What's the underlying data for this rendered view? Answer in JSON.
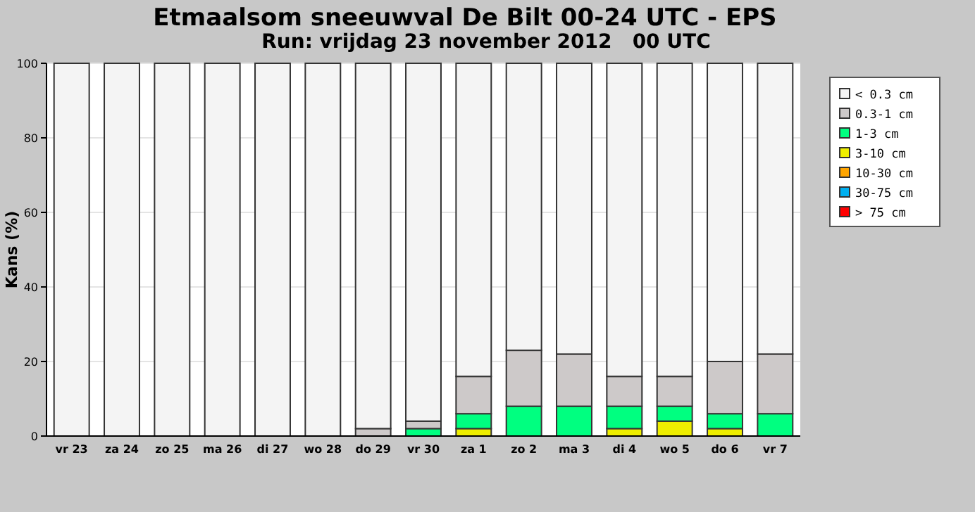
{
  "chart_data": {
    "type": "bar",
    "stacked": true,
    "title": "Etmaalsom sneeuwval De Bilt 00-24 UTC - EPS",
    "subtitle": "Run: vrijdag 23 november 2012   00 UTC",
    "ylabel": "Kans (%)",
    "categories": [
      "vr 23",
      "za 24",
      "zo 25",
      "ma 26",
      "di 27",
      "wo 28",
      "do 29",
      "vr 30",
      "za 1",
      "zo 2",
      "ma 3",
      "di 4",
      "wo 5",
      "do 6",
      "vr 7"
    ],
    "series": [
      {
        "name": "> 75 cm",
        "color": "#ff0000",
        "values": [
          0,
          0,
          0,
          0,
          0,
          0,
          0,
          0,
          0,
          0,
          0,
          0,
          0,
          0,
          0
        ]
      },
      {
        "name": "30-75 cm",
        "color": "#00b0f0",
        "values": [
          0,
          0,
          0,
          0,
          0,
          0,
          0,
          0,
          0,
          0,
          0,
          0,
          0,
          0,
          0
        ]
      },
      {
        "name": "10-30 cm",
        "color": "#ffa500",
        "values": [
          0,
          0,
          0,
          0,
          0,
          0,
          0,
          0,
          0,
          0,
          0,
          0,
          0,
          0,
          0
        ]
      },
      {
        "name": "3-10 cm",
        "color": "#eeee00",
        "values": [
          0,
          0,
          0,
          0,
          0,
          0,
          0,
          0,
          2,
          0,
          0,
          2,
          4,
          2,
          0
        ]
      },
      {
        "name": "1-3 cm",
        "color": "#00ff80",
        "values": [
          0,
          0,
          0,
          0,
          0,
          0,
          0,
          2,
          4,
          8,
          8,
          6,
          4,
          4,
          6
        ]
      },
      {
        "name": "0.3-1 cm",
        "color": "#cdc9c9",
        "values": [
          0,
          0,
          0,
          0,
          0,
          0,
          2,
          2,
          10,
          15,
          14,
          8,
          8,
          14,
          16
        ]
      },
      {
        "name": "< 0.3 cm",
        "color": "#f4f4f4",
        "values": [
          100,
          100,
          100,
          100,
          100,
          100,
          98,
          96,
          84,
          77,
          78,
          84,
          84,
          80,
          78
        ]
      }
    ],
    "ylim": [
      0,
      100
    ],
    "yticks": [
      0,
      20,
      40,
      60,
      80,
      100
    ],
    "grid": "y",
    "legend": "right"
  }
}
